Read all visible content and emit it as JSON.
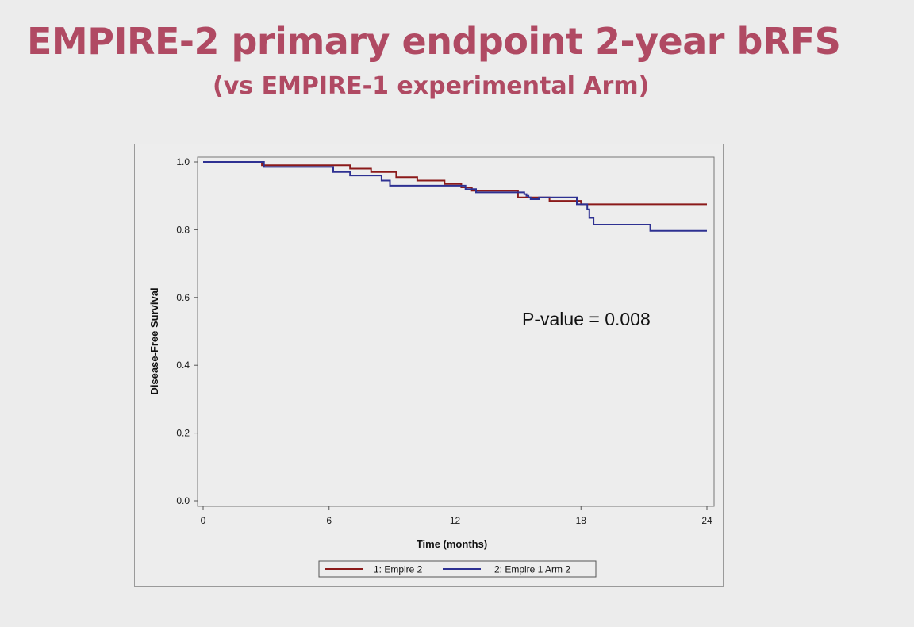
{
  "slide": {
    "title": "EMPIRE-2 primary endpoint 2-year bRFS",
    "subtitle": "(vs EMPIRE-1 experimental Arm)",
    "title_color": "#b04a63"
  },
  "chart_data": {
    "type": "line",
    "step": true,
    "xlabel": "Time (months)",
    "ylabel": "Disease-Free Survival",
    "xlim": [
      0,
      24
    ],
    "ylim": [
      0,
      1
    ],
    "x_ticks": [
      "0",
      "6",
      "12",
      "18",
      "24"
    ],
    "y_ticks": [
      "0.0",
      "0.2",
      "0.4",
      "0.6",
      "0.8",
      "1.0"
    ],
    "grid": false,
    "legend_position": "bottom",
    "annotation": "P-value = 0.008",
    "series": [
      {
        "name": "1: Empire 2",
        "color": "#8b1a1a",
        "points": [
          [
            0,
            1.0
          ],
          [
            2.8,
            1.0
          ],
          [
            2.8,
            0.99
          ],
          [
            7,
            0.99
          ],
          [
            7,
            0.98
          ],
          [
            8,
            0.98
          ],
          [
            8,
            0.97
          ],
          [
            9.2,
            0.97
          ],
          [
            9.2,
            0.955
          ],
          [
            10.2,
            0.955
          ],
          [
            10.2,
            0.945
          ],
          [
            11.5,
            0.945
          ],
          [
            11.5,
            0.935
          ],
          [
            12.3,
            0.935
          ],
          [
            12.3,
            0.925
          ],
          [
            12.8,
            0.925
          ],
          [
            12.8,
            0.915
          ],
          [
            15,
            0.915
          ],
          [
            15,
            0.895
          ],
          [
            16.5,
            0.895
          ],
          [
            16.5,
            0.885
          ],
          [
            18,
            0.885
          ],
          [
            18,
            0.875
          ],
          [
            24,
            0.875
          ]
        ]
      },
      {
        "name": "2: Empire 1 Arm 2",
        "color": "#2e3192",
        "points": [
          [
            0,
            1.0
          ],
          [
            2.9,
            1.0
          ],
          [
            2.9,
            0.985
          ],
          [
            6.2,
            0.985
          ],
          [
            6.2,
            0.97
          ],
          [
            7,
            0.97
          ],
          [
            7,
            0.96
          ],
          [
            8.5,
            0.96
          ],
          [
            8.5,
            0.945
          ],
          [
            8.9,
            0.945
          ],
          [
            8.9,
            0.93
          ],
          [
            12.5,
            0.93
          ],
          [
            12.5,
            0.92
          ],
          [
            13,
            0.92
          ],
          [
            13,
            0.91
          ],
          [
            15.3,
            0.91
          ],
          [
            15.3,
            0.905
          ],
          [
            15.4,
            0.905
          ],
          [
            15.4,
            0.9
          ],
          [
            15.5,
            0.9
          ],
          [
            15.5,
            0.895
          ],
          [
            15.6,
            0.895
          ],
          [
            15.6,
            0.89
          ],
          [
            16,
            0.89
          ],
          [
            16,
            0.895
          ],
          [
            17.8,
            0.895
          ],
          [
            17.8,
            0.875
          ],
          [
            18.3,
            0.875
          ],
          [
            18.3,
            0.86
          ],
          [
            18.4,
            0.86
          ],
          [
            18.4,
            0.835
          ],
          [
            18.6,
            0.835
          ],
          [
            18.6,
            0.815
          ],
          [
            21.3,
            0.815
          ],
          [
            21.3,
            0.797
          ],
          [
            24,
            0.797
          ]
        ]
      }
    ]
  }
}
